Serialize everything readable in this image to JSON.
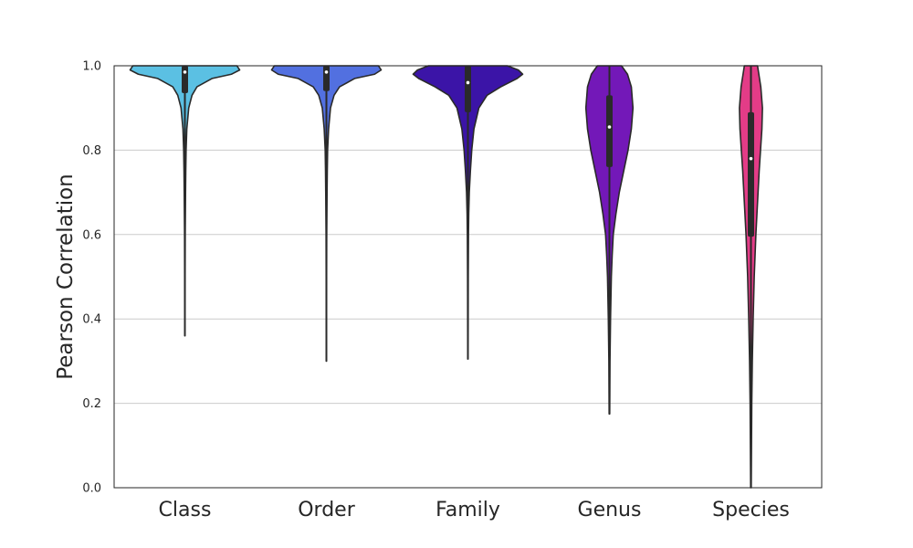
{
  "chart_data": {
    "type": "violin",
    "categories": [
      "Class",
      "Order",
      "Family",
      "Genus",
      "Species"
    ],
    "ylabel": "Pearson Correlation",
    "xlabel": "",
    "ylim": [
      0,
      1.0
    ],
    "yticks": [
      "0.0",
      "0.2",
      "0.4",
      "0.6",
      "0.8",
      "1.0"
    ],
    "grid": true,
    "colors": [
      "#5bc0e3",
      "#5270e0",
      "#3b14a7",
      "#7318b8",
      "#e33c87"
    ],
    "series": [
      {
        "category": "Class",
        "min": 0.36,
        "q1": 0.935,
        "median": 0.985,
        "q3": 1.0,
        "whisker_low": 0.845,
        "max": 1.0,
        "profile": [
          [
            0.36,
            0.003
          ],
          [
            0.5,
            0.004
          ],
          [
            0.6,
            0.006
          ],
          [
            0.65,
            0.009
          ],
          [
            0.7,
            0.012
          ],
          [
            0.75,
            0.016
          ],
          [
            0.8,
            0.022
          ],
          [
            0.85,
            0.035
          ],
          [
            0.9,
            0.07
          ],
          [
            0.93,
            0.13
          ],
          [
            0.95,
            0.22
          ],
          [
            0.97,
            0.5
          ],
          [
            0.98,
            0.85
          ],
          [
            0.99,
            1.0
          ],
          [
            1.0,
            0.95
          ]
        ]
      },
      {
        "category": "Order",
        "min": 0.3,
        "q1": 0.94,
        "median": 0.985,
        "q3": 1.0,
        "whisker_low": 0.84,
        "max": 1.0,
        "profile": [
          [
            0.3,
            0.003
          ],
          [
            0.5,
            0.004
          ],
          [
            0.6,
            0.006
          ],
          [
            0.65,
            0.009
          ],
          [
            0.7,
            0.012
          ],
          [
            0.75,
            0.016
          ],
          [
            0.8,
            0.022
          ],
          [
            0.85,
            0.04
          ],
          [
            0.9,
            0.075
          ],
          [
            0.93,
            0.14
          ],
          [
            0.95,
            0.24
          ],
          [
            0.97,
            0.52
          ],
          [
            0.98,
            0.88
          ],
          [
            0.99,
            1.0
          ],
          [
            1.0,
            0.95
          ]
        ]
      },
      {
        "category": "Family",
        "min": 0.305,
        "q1": 0.89,
        "median": 0.96,
        "q3": 1.0,
        "whisker_low": 0.72,
        "max": 1.0,
        "profile": [
          [
            0.305,
            0.003
          ],
          [
            0.5,
            0.006
          ],
          [
            0.6,
            0.01
          ],
          [
            0.65,
            0.015
          ],
          [
            0.7,
            0.025
          ],
          [
            0.75,
            0.045
          ],
          [
            0.8,
            0.07
          ],
          [
            0.85,
            0.11
          ],
          [
            0.9,
            0.2
          ],
          [
            0.93,
            0.35
          ],
          [
            0.95,
            0.6
          ],
          [
            0.97,
            0.9
          ],
          [
            0.98,
            1.0
          ],
          [
            0.99,
            0.92
          ],
          [
            1.0,
            0.72
          ]
        ]
      },
      {
        "category": "Genus",
        "min": 0.175,
        "q1": 0.76,
        "median": 0.855,
        "q3": 0.93,
        "whisker_low": 0.52,
        "max": 1.0,
        "profile": [
          [
            0.175,
            0.005
          ],
          [
            0.3,
            0.01
          ],
          [
            0.4,
            0.02
          ],
          [
            0.5,
            0.035
          ],
          [
            0.55,
            0.05
          ],
          [
            0.6,
            0.07
          ],
          [
            0.65,
            0.12
          ],
          [
            0.7,
            0.18
          ],
          [
            0.75,
            0.26
          ],
          [
            0.8,
            0.34
          ],
          [
            0.85,
            0.4
          ],
          [
            0.9,
            0.43
          ],
          [
            0.95,
            0.4
          ],
          [
            0.98,
            0.33
          ],
          [
            1.0,
            0.22
          ]
        ]
      },
      {
        "category": "Species",
        "min": 0.0,
        "q1": 0.595,
        "median": 0.78,
        "q3": 0.89,
        "whisker_low": 0.32,
        "max": 1.0,
        "profile": [
          [
            0.0,
            0.005
          ],
          [
            0.1,
            0.01
          ],
          [
            0.2,
            0.015
          ],
          [
            0.3,
            0.025
          ],
          [
            0.4,
            0.04
          ],
          [
            0.5,
            0.06
          ],
          [
            0.6,
            0.09
          ],
          [
            0.65,
            0.11
          ],
          [
            0.7,
            0.13
          ],
          [
            0.75,
            0.15
          ],
          [
            0.8,
            0.175
          ],
          [
            0.85,
            0.2
          ],
          [
            0.9,
            0.21
          ],
          [
            0.95,
            0.18
          ],
          [
            1.0,
            0.12
          ]
        ]
      }
    ]
  }
}
